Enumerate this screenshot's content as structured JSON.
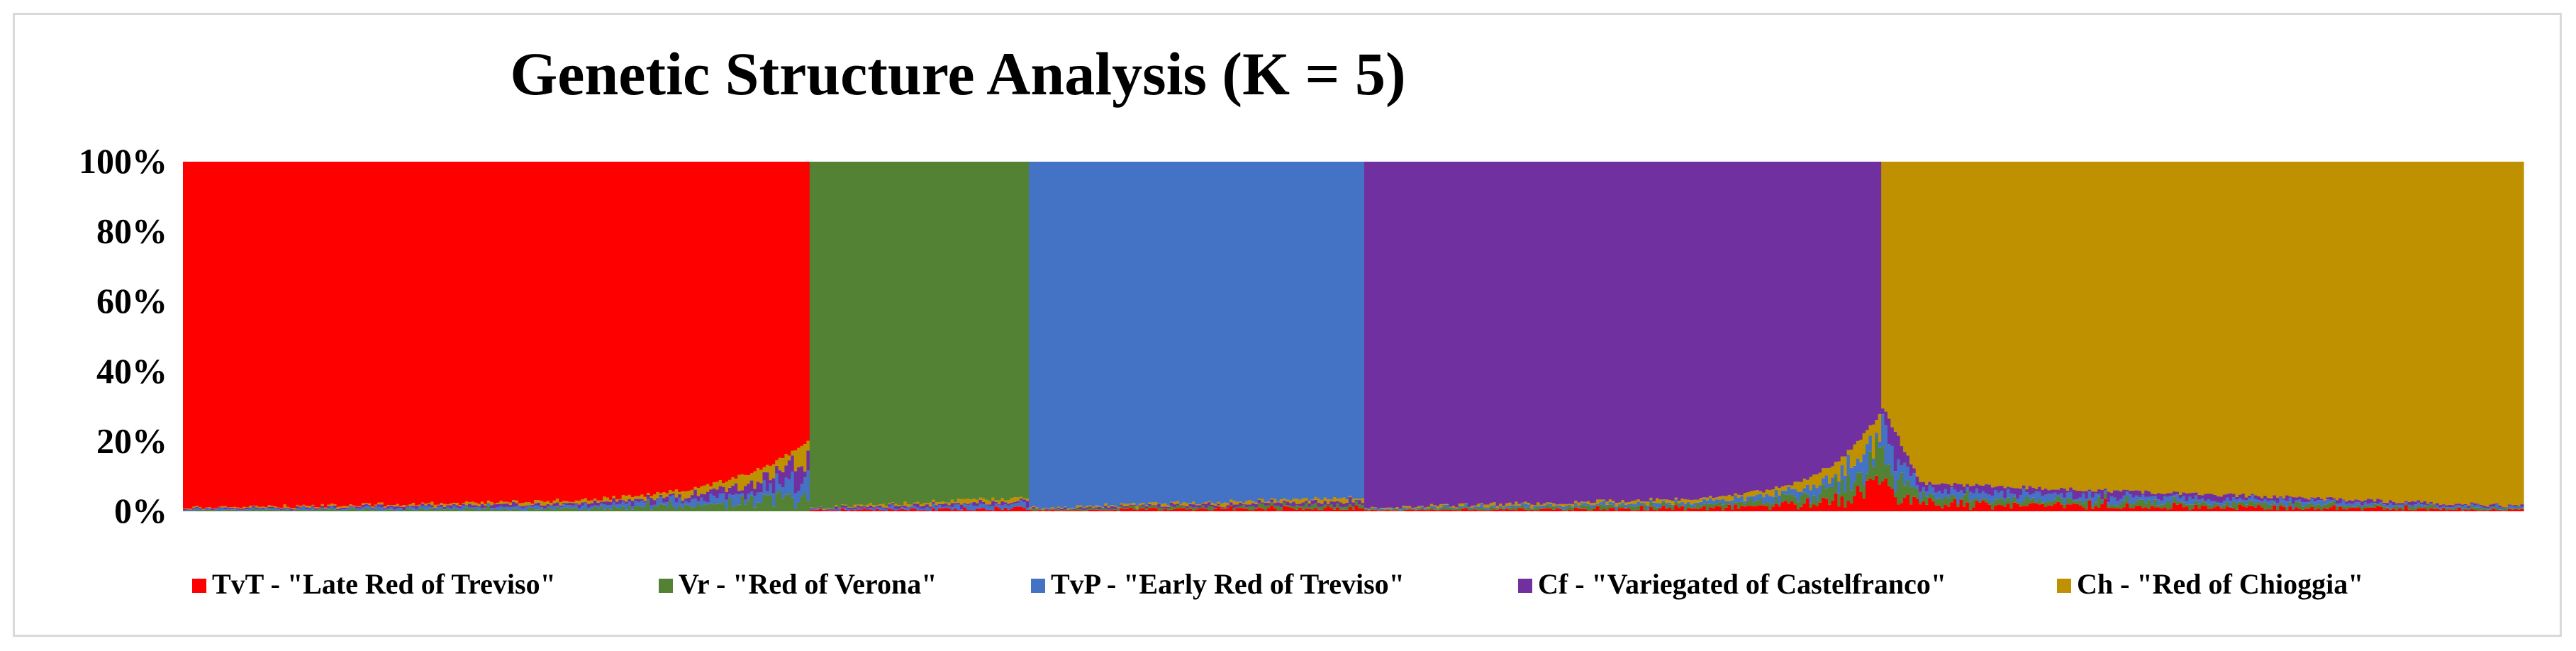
{
  "chart_data": {
    "type": "stacked-bar",
    "title": "Genetic Structure Analysis (K = 5)",
    "xlabel": "",
    "ylabel": "",
    "ylim": [
      0,
      100
    ],
    "y_ticks": [
      "0%",
      "20%",
      "40%",
      "60%",
      "80%",
      "100%"
    ],
    "y_tick_values": [
      0,
      20,
      40,
      60,
      80,
      100
    ],
    "grid": false,
    "legend_position": "bottom",
    "series": [
      {
        "name": "TvT - \"Late Red of Treviso\"",
        "color": "#ff0000"
      },
      {
        "name": "Vr - \"Red of Verona\"",
        "color": "#548235"
      },
      {
        "name": "TvP - \"Early Red of Treviso\"",
        "color": "#4472c4"
      },
      {
        "name": "Cf - \"Variegated of Castelfranco\"",
        "color": "#7030a0"
      },
      {
        "name": "Ch - \"Red of Chioggia\"",
        "color": "#bf9000"
      }
    ],
    "groups": [
      {
        "series_index": 0,
        "individuals": 200,
        "main_start": 99,
        "main_end": 79
      },
      {
        "series_index": 1,
        "individuals": 70,
        "main_start": 99,
        "main_end": 96
      },
      {
        "series_index": 2,
        "individuals": 107,
        "main_start": 99,
        "main_end": 96
      },
      {
        "series_index": 3,
        "individuals": 165,
        "main_start": 99,
        "main_end": 72
      },
      {
        "series_index": 4,
        "individuals": 205,
        "main_start": 70,
        "main_end": 98.5
      }
    ]
  }
}
